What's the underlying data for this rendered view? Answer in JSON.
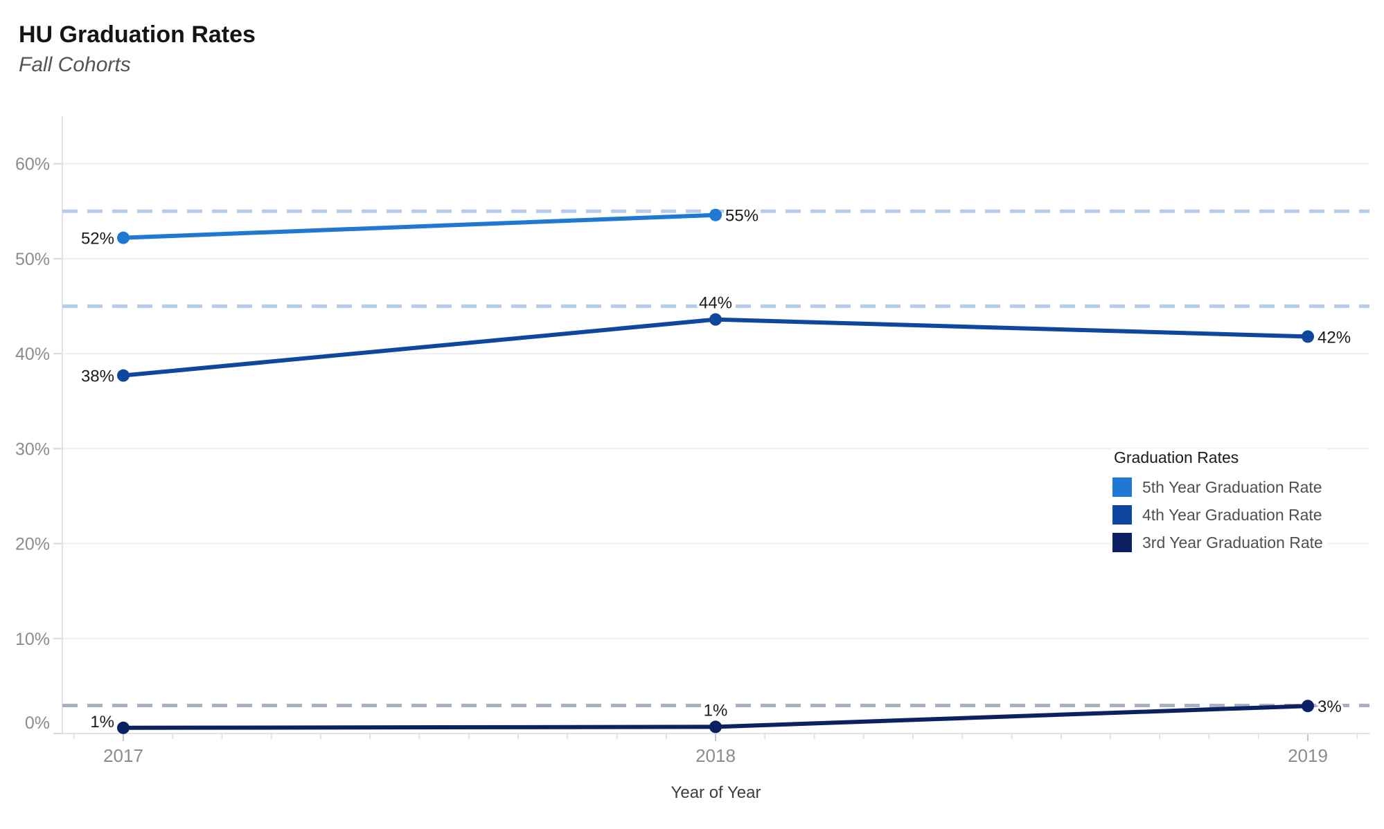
{
  "chart_data": {
    "type": "line",
    "title": "HU Graduation Rates",
    "subtitle": "Fall Cohorts",
    "x": [
      "2017",
      "2018",
      "2019"
    ],
    "xlabel": "Year of Year",
    "ylabel": "",
    "ylim": [
      0,
      65
    ],
    "y_tick_labels": [
      "0%",
      "10%",
      "20%",
      "30%",
      "40%",
      "50%",
      "60%"
    ],
    "grid": "horizontal-only",
    "series": [
      {
        "name": "5th Year Graduation Rate",
        "color": "#1f78d2",
        "points": [
          {
            "x": "2017",
            "value": 52,
            "label": "52%",
            "plot_value": 52.2,
            "label_pos": "left"
          },
          {
            "x": "2018",
            "value": 55,
            "label": "55%",
            "plot_value": 54.6,
            "label_pos": "right"
          }
        ]
      },
      {
        "name": "4th Year Graduation Rate",
        "color": "#0e479d",
        "points": [
          {
            "x": "2017",
            "value": 38,
            "label": "38%",
            "plot_value": 37.7,
            "label_pos": "left"
          },
          {
            "x": "2018",
            "value": 44,
            "label": "44%",
            "plot_value": 43.6,
            "label_pos": "above"
          },
          {
            "x": "2019",
            "value": 42,
            "label": "42%",
            "plot_value": 41.8,
            "label_pos": "right"
          }
        ]
      },
      {
        "name": "3rd Year Graduation Rate",
        "color": "#0b2161",
        "points": [
          {
            "x": "2017",
            "value": 1,
            "label": "1%",
            "plot_value": 0.6,
            "label_pos": "left-above"
          },
          {
            "x": "2018",
            "value": 1,
            "label": "1%",
            "plot_value": 0.7,
            "label_pos": "above"
          },
          {
            "x": "2019",
            "value": 3,
            "label": "3%",
            "plot_value": 2.9,
            "label_pos": "right"
          }
        ]
      }
    ],
    "reference_lines": [
      {
        "value": 55,
        "color": "#b5cdeb",
        "style": "dashed"
      },
      {
        "value": 45,
        "color": "#b5cdeb",
        "style": "dashed"
      },
      {
        "value": 2.95,
        "color": "#a8b0c6",
        "style": "dashed"
      }
    ],
    "legend": {
      "title": "Graduation Rates",
      "position": "right",
      "items": [
        {
          "label": "5th Year Graduation Rate",
          "color": "#1f78d2"
        },
        {
          "label": "4th Year Graduation Rate",
          "color": "#0e479d"
        },
        {
          "label": "3rd Year Graduation Rate",
          "color": "#0b2161"
        }
      ]
    }
  }
}
